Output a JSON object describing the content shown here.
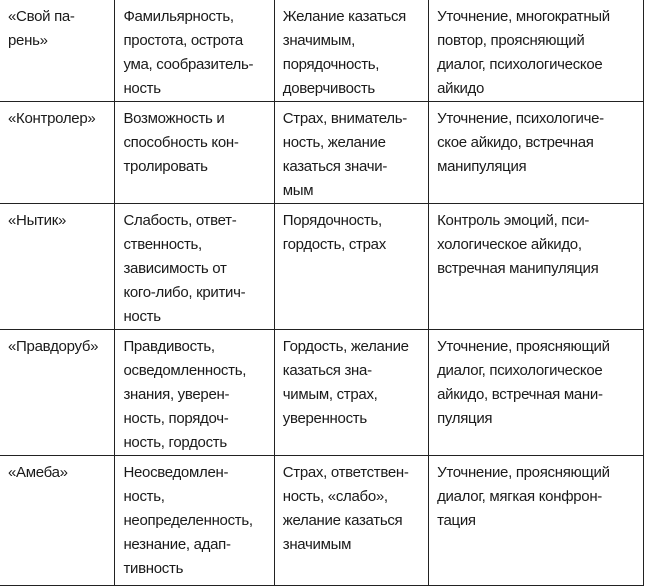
{
  "table": {
    "rows": [
      [
        [
          "«Свой па-",
          "рень»"
        ],
        [
          "Фамильярность,",
          "простота, острота",
          "ума, сообразитель-",
          "ность"
        ],
        [
          "Желание казаться",
          "значимым,",
          "порядочность,",
          "доверчивость"
        ],
        [
          "Уточнение, многократный",
          "повтор, проясняющий",
          "диалог, психологическое",
          "айкидо"
        ]
      ],
      [
        [
          "«Контролер»"
        ],
        [
          "Возможность и",
          "способность кон-",
          "тролировать"
        ],
        [
          "Страх, вниматель-",
          "ность, желание",
          "казаться значи-",
          "мым"
        ],
        [
          "Уточнение, психологиче-",
          "ское айкидо, встречная",
          "манипуляция"
        ]
      ],
      [
        [
          "«Нытик»"
        ],
        [
          "Слабость, ответ-",
          "ственность,",
          "зависимость от",
          "кого-либо, критич-",
          "ность"
        ],
        [
          "Порядочность,",
          "гордость, страх"
        ],
        [
          "Контроль эмоций, пси-",
          "хологическое айкидо,",
          "встречная манипуляция"
        ]
      ],
      [
        [
          "«Правдоруб»"
        ],
        [
          "Правдивость,",
          "осведомленность,",
          "знания, уверен-",
          "ность, порядоч-",
          "ность, гордость"
        ],
        [
          "Гордость, желание",
          "казаться зна-",
          "чимым, страх,",
          "уверенность"
        ],
        [
          "Уточнение, проясняющий",
          "диалог, психологическое",
          "айкидо, встречная мани-",
          "пуляция"
        ]
      ],
      [
        [
          "«Амеба»"
        ],
        [
          "Неосведомлен-",
          "ность,",
          "неопределенность,",
          "незнание, адап-",
          "тивность"
        ],
        [
          "Страх, ответствен-",
          "ность, «слабо»,",
          "желание казаться",
          "значимым"
        ],
        [
          "Уточнение, проясняющий",
          "диалог, мягкая конфрон-",
          "тация"
        ]
      ]
    ]
  }
}
